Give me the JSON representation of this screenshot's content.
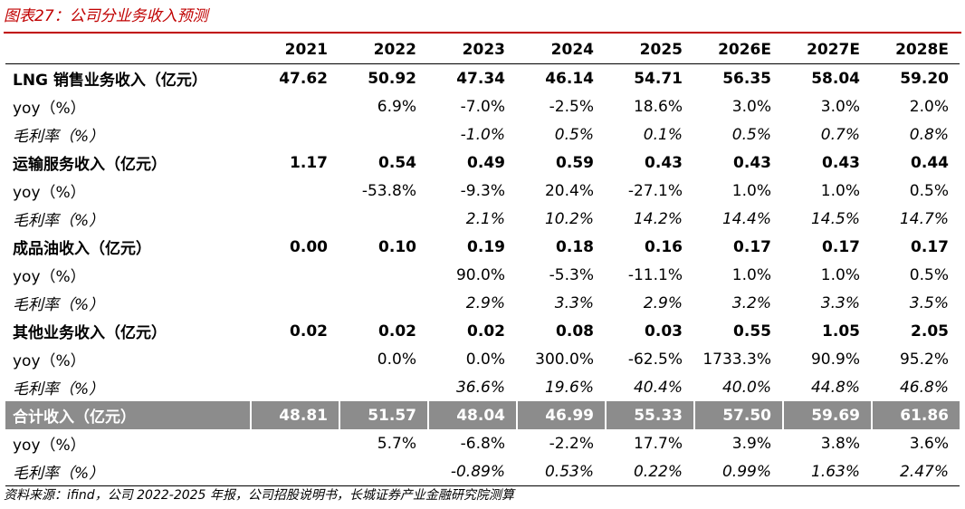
{
  "title": "图表27：公司分业务收入预测",
  "years": [
    "2021",
    "2022",
    "2023",
    "2024",
    "2025",
    "2026E",
    "2027E",
    "2028E"
  ],
  "rows": [
    {
      "type": "main",
      "label": "LNG 销售业务收入（亿元）",
      "values": [
        "47.62",
        "50.92",
        "47.34",
        "46.14",
        "54.71",
        "56.35",
        "58.04",
        "59.20"
      ]
    },
    {
      "type": "yoy",
      "label": "yoy（%）",
      "values": [
        "",
        "6.9%",
        "-7.0%",
        "-2.5%",
        "18.6%",
        "3.0%",
        "3.0%",
        "2.0%"
      ]
    },
    {
      "type": "gm",
      "label": "毛利率（%）",
      "values": [
        "",
        "",
        "-1.0%",
        "0.5%",
        "0.1%",
        "0.5%",
        "0.7%",
        "0.8%"
      ]
    },
    {
      "type": "main",
      "label": "运输服务收入（亿元）",
      "values": [
        "1.17",
        "0.54",
        "0.49",
        "0.59",
        "0.43",
        "0.43",
        "0.43",
        "0.44"
      ]
    },
    {
      "type": "yoy",
      "label": "yoy（%）",
      "values": [
        "",
        "-53.8%",
        "-9.3%",
        "20.4%",
        "-27.1%",
        "1.0%",
        "1.0%",
        "0.5%"
      ]
    },
    {
      "type": "gm",
      "label": "毛利率（%）",
      "values": [
        "",
        "",
        "2.1%",
        "10.2%",
        "14.2%",
        "14.4%",
        "14.5%",
        "14.7%"
      ]
    },
    {
      "type": "main",
      "label": "成品油收入（亿元）",
      "values": [
        "0.00",
        "0.10",
        "0.19",
        "0.18",
        "0.16",
        "0.17",
        "0.17",
        "0.17"
      ]
    },
    {
      "type": "yoy",
      "label": "yoy（%）",
      "values": [
        "",
        "",
        "90.0%",
        "-5.3%",
        "-11.1%",
        "1.0%",
        "1.0%",
        "0.5%"
      ]
    },
    {
      "type": "gm",
      "label": "毛利率（%）",
      "values": [
        "",
        "",
        "2.9%",
        "3.3%",
        "2.9%",
        "3.2%",
        "3.3%",
        "3.5%"
      ]
    },
    {
      "type": "main",
      "label": "其他业务收入（亿元）",
      "values": [
        "0.02",
        "0.02",
        "0.02",
        "0.08",
        "0.03",
        "0.55",
        "1.05",
        "2.05"
      ]
    },
    {
      "type": "yoy",
      "label": "yoy（%）",
      "values": [
        "",
        "0.0%",
        "0.0%",
        "300.0%",
        "-62.5%",
        "1733.3%",
        "90.9%",
        "95.2%"
      ]
    },
    {
      "type": "gm",
      "label": "毛利率（%）",
      "values": [
        "",
        "",
        "36.6%",
        "19.6%",
        "40.4%",
        "40.0%",
        "44.8%",
        "46.8%"
      ]
    },
    {
      "type": "total",
      "label": "合计收入（亿元）",
      "values": [
        "48.81",
        "51.57",
        "48.04",
        "46.99",
        "55.33",
        "57.50",
        "59.69",
        "61.86"
      ]
    },
    {
      "type": "yoy",
      "label": "yoy（%）",
      "values": [
        "",
        "5.7%",
        "-6.8%",
        "-2.2%",
        "17.7%",
        "3.9%",
        "3.8%",
        "3.6%"
      ]
    },
    {
      "type": "gm",
      "label": "毛利率（%）",
      "values": [
        "",
        "",
        "-0.89%",
        "0.53%",
        "0.22%",
        "0.99%",
        "1.63%",
        "2.47%"
      ]
    }
  ],
  "source": "资料来源：ifind，公司 2022-2025 年报，公司招股说明书，长城证券产业金融研究院测算",
  "colors": {
    "accent": "#c00000",
    "total_row_bg": "#8c8c8c"
  }
}
